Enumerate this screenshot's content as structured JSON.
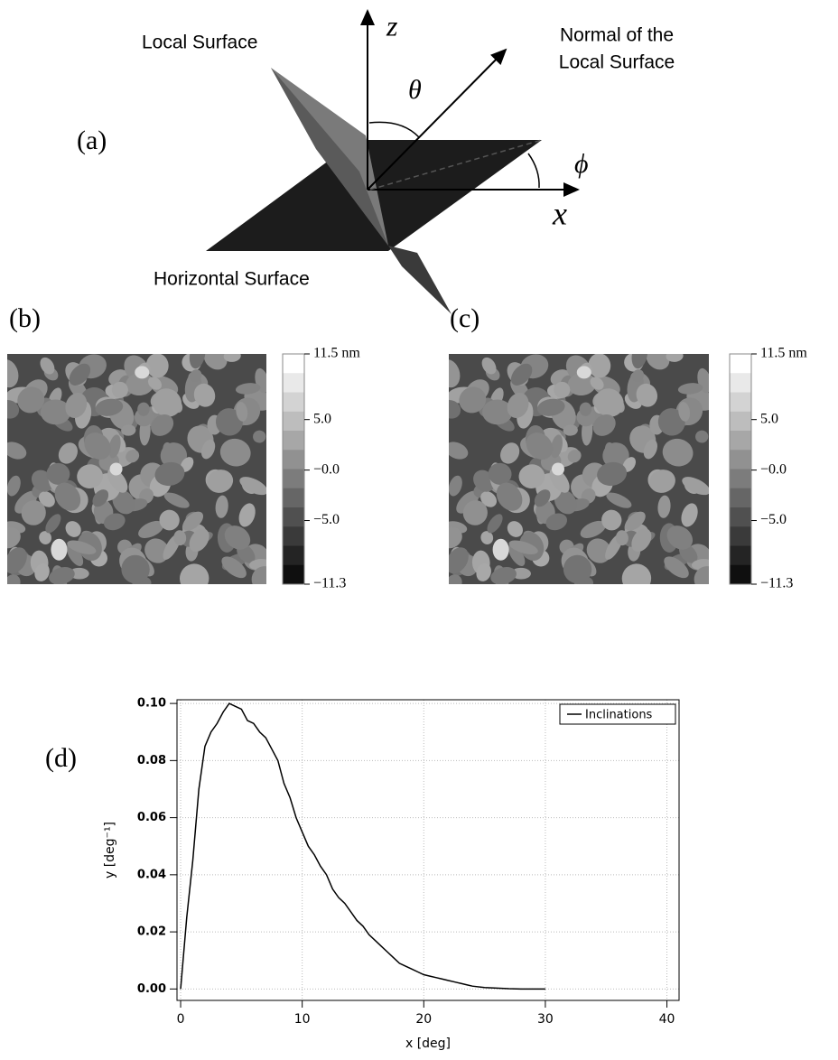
{
  "panel_labels": [
    "(a)",
    "(b)",
    "(c)",
    "(d)"
  ],
  "diagram": {
    "local_surface": "Local Surface",
    "normal": [
      "Normal of the",
      "Local Surface"
    ],
    "z_axis": "z",
    "x_axis": "x",
    "theta": "θ",
    "phi": "ϕ",
    "horizontal_surface": "Horizontal Surface"
  },
  "colorbars": [
    {
      "lim": [
        -11.3,
        11.5
      ],
      "ticks": [
        {
          "value": 11.5,
          "label": "11.5 nm"
        },
        {
          "value": 5,
          "label": "5.0"
        },
        {
          "value": 0,
          "label": "−0.0"
        },
        {
          "value": -5,
          "label": "−5.0"
        },
        {
          "value": -11.3,
          "label": "−11.3"
        }
      ]
    },
    {
      "lim": [
        -11.3,
        11.5
      ],
      "ticks": [
        {
          "value": 11.5,
          "label": "11.5 nm"
        },
        {
          "value": 5,
          "label": "5.0"
        },
        {
          "value": 0,
          "label": "−0.0"
        },
        {
          "value": -5,
          "label": "−5.0"
        },
        {
          "value": -11.3,
          "label": "−11.3"
        }
      ]
    }
  ],
  "chart_data": {
    "type": "line",
    "xlabel": "x [deg]",
    "ylabel": "y [deg⁻¹]",
    "x": [
      0,
      0.5,
      1,
      1.5,
      2,
      2.5,
      3,
      3.5,
      4,
      4.5,
      5,
      5.5,
      6,
      6.5,
      7,
      7.5,
      8,
      8.5,
      9,
      9.5,
      10,
      10.5,
      11,
      11.5,
      12,
      12.5,
      13,
      13.5,
      14,
      14.5,
      15,
      15.5,
      16,
      16.5,
      17,
      17.5,
      18,
      18.5,
      19,
      19.5,
      20,
      20.5,
      21,
      21.5,
      22,
      22.5,
      23,
      23.5,
      24,
      25,
      26,
      27,
      28,
      30
    ],
    "series": [
      {
        "name": "Inclinations",
        "color": "#000000",
        "values": [
          0,
          0.025,
          0.045,
          0.07,
          0.085,
          0.09,
          0.093,
          0.097,
          0.1,
          0.099,
          0.098,
          0.094,
          0.093,
          0.09,
          0.088,
          0.084,
          0.08,
          0.072,
          0.067,
          0.06,
          0.055,
          0.05,
          0.047,
          0.043,
          0.04,
          0.035,
          0.032,
          0.03,
          0.027,
          0.024,
          0.022,
          0.019,
          0.017,
          0.015,
          0.013,
          0.011,
          0.009,
          0.008,
          0.007,
          0.006,
          0.005,
          0.0045,
          0.004,
          0.0035,
          0.003,
          0.0025,
          0.002,
          0.0015,
          0.001,
          0.0005,
          0.0003,
          0.0001,
          0,
          0
        ]
      }
    ],
    "xlim": [
      -0.3,
      41
    ],
    "ylim": [
      -0.004,
      0.1013
    ],
    "xticks": [
      0,
      10,
      20,
      30,
      40
    ],
    "yticks": [
      {
        "value": 0,
        "label": "0.00"
      },
      0.02,
      0.04,
      0.06,
      0.08,
      {
        "value": 0.1,
        "label": "0.10"
      }
    ],
    "grid": true,
    "legend": "upper right"
  }
}
